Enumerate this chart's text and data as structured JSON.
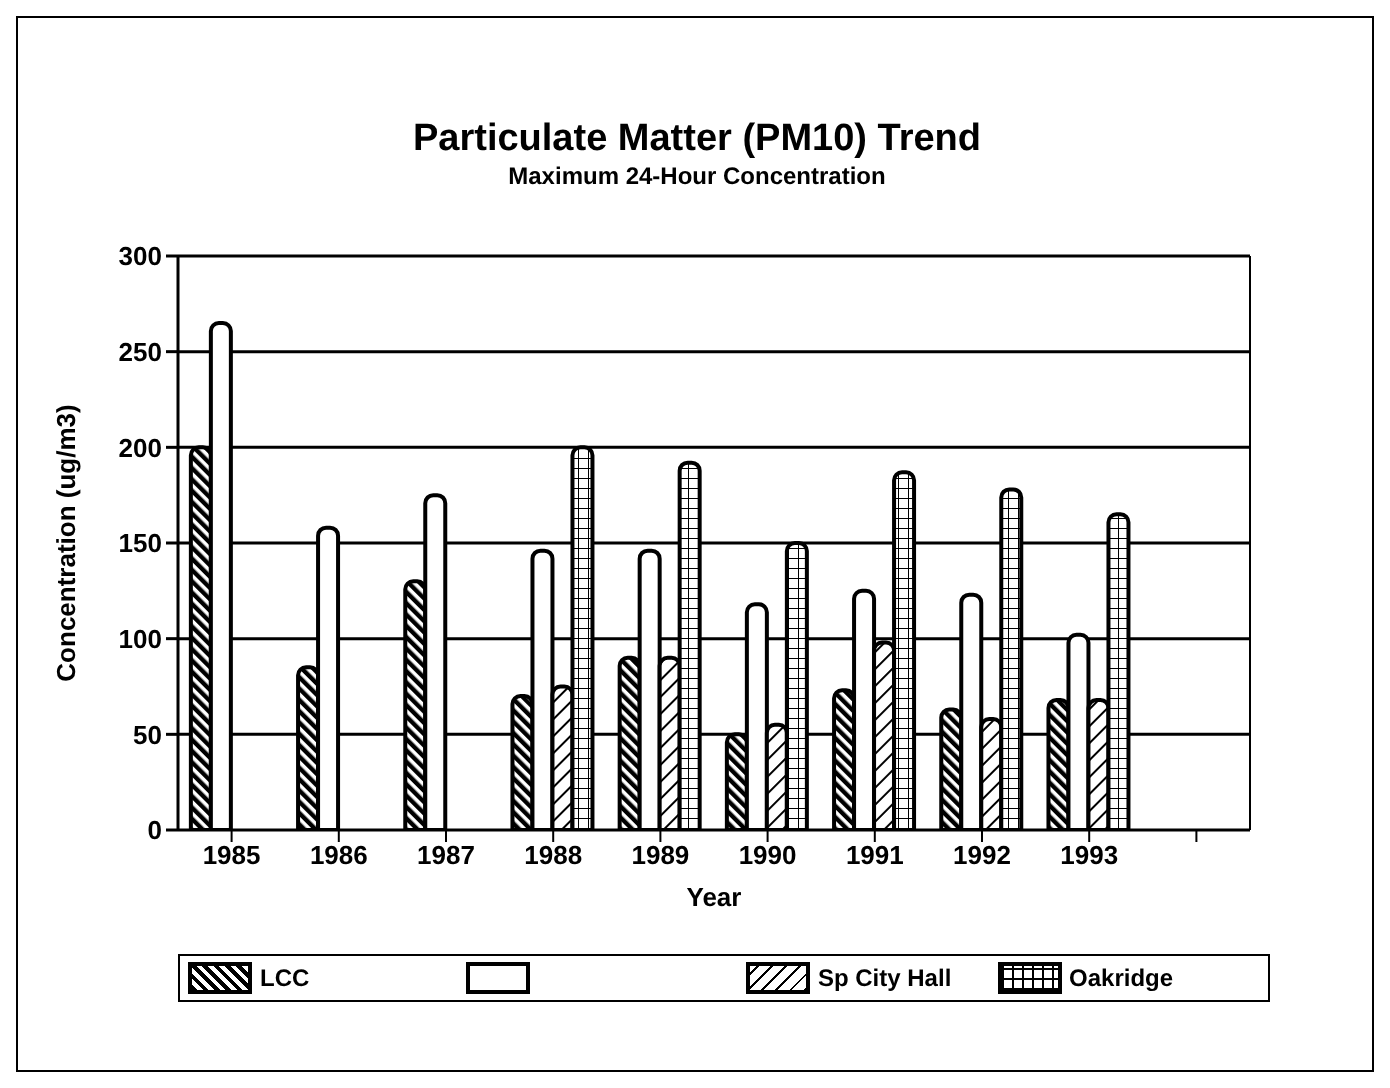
{
  "chart_data": {
    "type": "bar",
    "title": "Particulate Matter (PM10) Trend",
    "subtitle": "Maximum 24-Hour Concentration",
    "xlabel": "Year",
    "ylabel": "Concentration (ug/m3)",
    "categories": [
      "1985",
      "1986",
      "1987",
      "1988",
      "1989",
      "1990",
      "1991",
      "1992",
      "1993",
      null
    ],
    "series": [
      {
        "name": "LCC",
        "color": "#000000",
        "values": [
          200,
          85,
          130,
          70,
          90,
          50,
          73,
          63,
          68,
          null
        ]
      },
      {
        "color": "#000000",
        "values": [
          265,
          158,
          175,
          146,
          146,
          118,
          125,
          123,
          102,
          null
        ]
      },
      {
        "name": "Sp City Hall",
        "color": "#000000",
        "values": [
          null,
          null,
          null,
          75,
          90,
          55,
          98,
          58,
          68,
          null
        ]
      },
      {
        "name": "Oakridge",
        "color": "#000000",
        "values": [
          null,
          null,
          null,
          200,
          192,
          150,
          187,
          178,
          165,
          null
        ]
      }
    ],
    "ylim": [
      0,
      300
    ],
    "yticks": [
      0,
      50,
      100,
      150,
      200,
      250,
      300
    ],
    "grid": "y",
    "legend": "bottom"
  }
}
